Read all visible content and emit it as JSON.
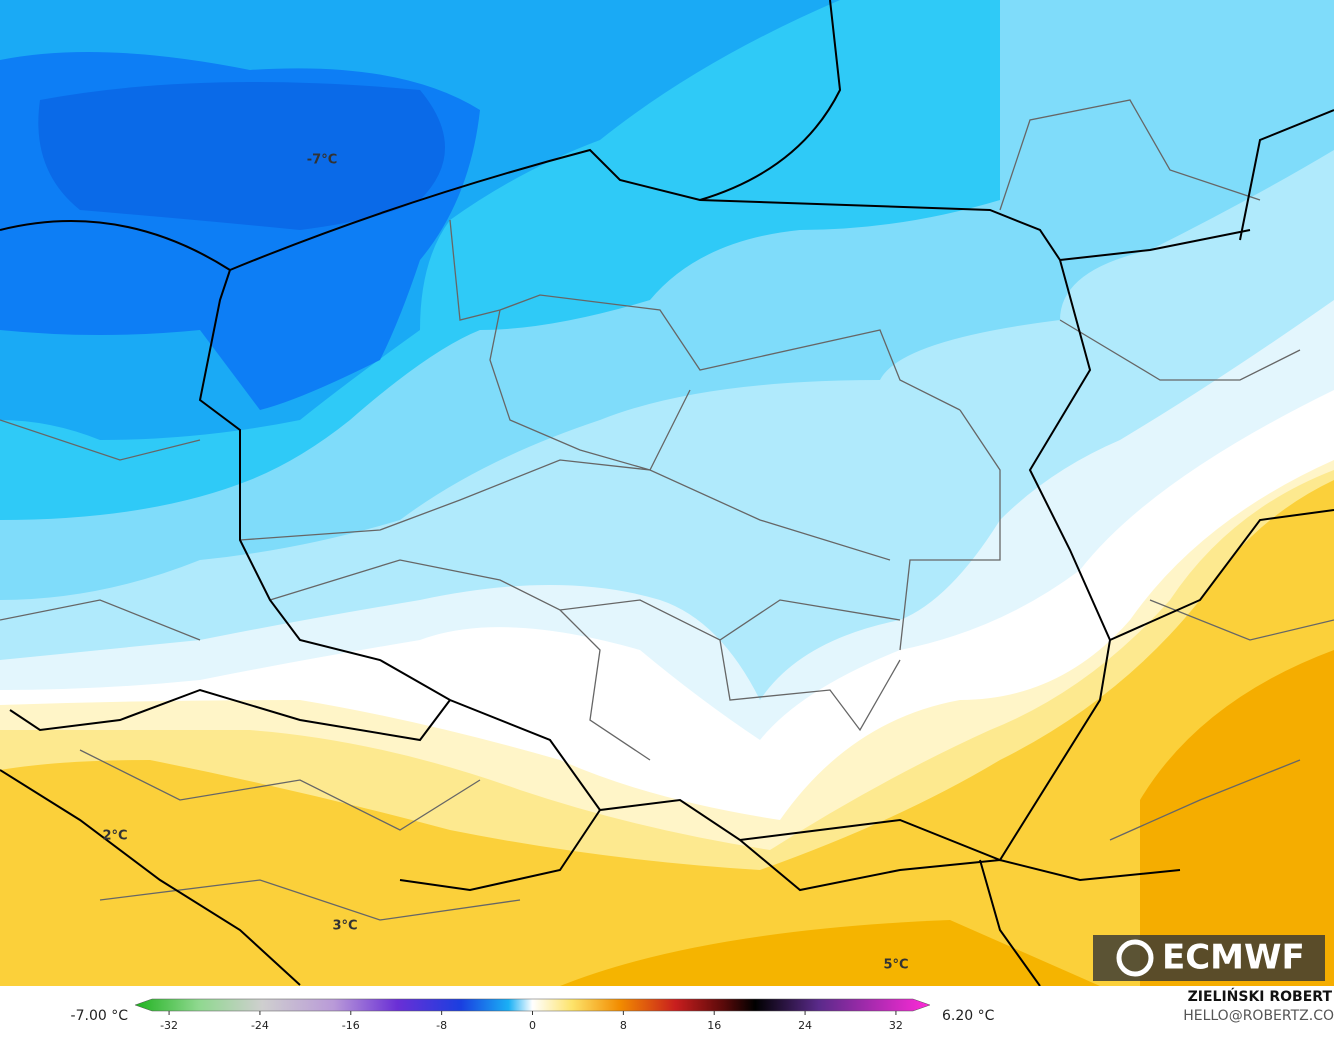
{
  "map_labels": [
    "-7°C",
    "2°C",
    "3°C",
    "5°C"
  ],
  "logo": "ECMWF",
  "author": "ZIELIŃSKI ROBERT",
  "contact": "HELLO@ROBERTZ.CO",
  "colorbar": {
    "min_label": "-7.00 °C",
    "max_label": "6.20 °C",
    "range": [
      -35,
      35
    ],
    "ticks": [
      -32,
      -24,
      -16,
      -8,
      0,
      8,
      16,
      24,
      32
    ]
  }
}
